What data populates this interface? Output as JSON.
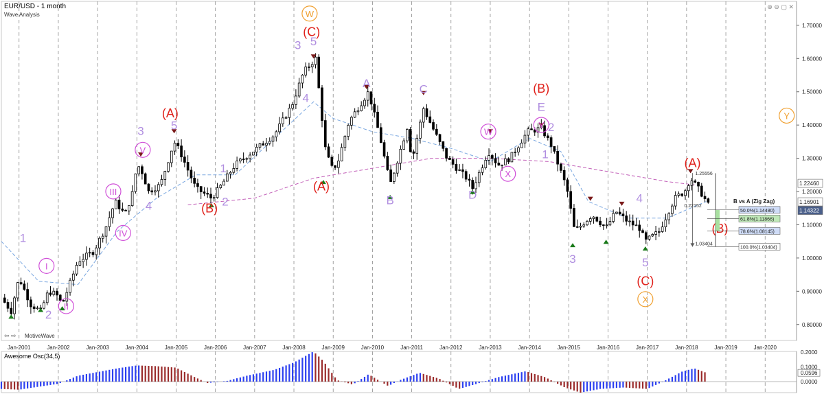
{
  "header": {
    "symbol": "EUR/USD - 1 month",
    "study": "Wave Analysis"
  },
  "watermark": "MotiveWave",
  "window_controls": "⊕ ⊖ ▢ ✕",
  "nav_arrows": "⇦ ⇨",
  "oscillator": {
    "title": "Awesome Osc(34,5)",
    "axis_labels": [
      "0.2000",
      "0.1000",
      "0.0596",
      "0.0000"
    ],
    "current_value": 0.0596
  },
  "chart_data": {
    "type": "candlestick",
    "title": "EUR/USD - 1 month",
    "subtitle": "Wave Analysis",
    "x_ticks": [
      "Jan-2001",
      "Jan-2002",
      "Jan-2003",
      "Jan-2004",
      "Jan-2005",
      "Jan-2006",
      "Jan-2007",
      "Jan-2008",
      "Jan-2009",
      "Jan-2010",
      "Jan-2011",
      "Jan-2012",
      "Jan-2013",
      "Jan-2014",
      "Jan-2015",
      "Jan-2016",
      "Jan-2017",
      "Jan-2018",
      "Jan-2019",
      "Jan-2020"
    ],
    "x_range": [
      2000.55,
      2020.8
    ],
    "y_ticks": [
      "0.80000",
      "0.90000",
      "1.00000",
      "1.10000",
      "1.20000",
      "1.30000",
      "1.40000",
      "1.50000",
      "1.60000",
      "1.70000"
    ],
    "ylim": [
      0.752,
      1.772
    ],
    "grid": "vertical dashed at yearly ticks",
    "price_path": [
      [
        2000.55,
        0.88
      ],
      [
        2000.8,
        0.84
      ],
      [
        2001.0,
        0.94
      ],
      [
        2001.3,
        0.86
      ],
      [
        2001.55,
        0.84
      ],
      [
        2001.75,
        0.9
      ],
      [
        2001.95,
        0.89
      ],
      [
        2002.1,
        0.86
      ],
      [
        2002.5,
        0.99
      ],
      [
        2002.9,
        1.02
      ],
      [
        2003.2,
        1.09
      ],
      [
        2003.45,
        1.17
      ],
      [
        2003.7,
        1.13
      ],
      [
        2003.9,
        1.2
      ],
      [
        2004.0,
        1.28
      ],
      [
        2004.1,
        1.27
      ],
      [
        2004.3,
        1.2
      ],
      [
        2004.6,
        1.22
      ],
      [
        2004.95,
        1.35
      ],
      [
        2005.1,
        1.32
      ],
      [
        2005.5,
        1.21
      ],
      [
        2005.9,
        1.18
      ],
      [
        2006.1,
        1.21
      ],
      [
        2006.5,
        1.28
      ],
      [
        2006.95,
        1.32
      ],
      [
        2007.5,
        1.37
      ],
      [
        2007.95,
        1.46
      ],
      [
        2008.25,
        1.56
      ],
      [
        2008.55,
        1.6
      ],
      [
        2008.8,
        1.33
      ],
      [
        2008.95,
        1.27
      ],
      [
        2009.1,
        1.28
      ],
      [
        2009.4,
        1.41
      ],
      [
        2009.9,
        1.5
      ],
      [
        2010.2,
        1.36
      ],
      [
        2010.45,
        1.22
      ],
      [
        2010.9,
        1.4
      ],
      [
        2011.0,
        1.29
      ],
      [
        2011.3,
        1.45
      ],
      [
        2011.9,
        1.3
      ],
      [
        2012.4,
        1.24
      ],
      [
        2012.55,
        1.21
      ],
      [
        2012.95,
        1.32
      ],
      [
        2013.2,
        1.28
      ],
      [
        2013.5,
        1.3
      ],
      [
        2013.95,
        1.38
      ],
      [
        2014.3,
        1.39
      ],
      [
        2014.55,
        1.34
      ],
      [
        2014.95,
        1.21
      ],
      [
        2015.15,
        1.08
      ],
      [
        2015.6,
        1.13
      ],
      [
        2015.95,
        1.09
      ],
      [
        2016.2,
        1.14
      ],
      [
        2016.5,
        1.11
      ],
      [
        2016.8,
        1.09
      ],
      [
        2016.95,
        1.05
      ],
      [
        2017.3,
        1.08
      ],
      [
        2017.7,
        1.18
      ],
      [
        2017.95,
        1.2
      ],
      [
        2018.1,
        1.24
      ],
      [
        2018.35,
        1.2
      ],
      [
        2018.55,
        1.16
      ]
    ],
    "y_axis_markers": [
      {
        "label": "1.22460",
        "value": 1.2246,
        "style": "plain"
      },
      {
        "label": "1.16901",
        "value": 1.16901,
        "style": "plain"
      },
      {
        "label": "1.14322",
        "value": 1.14322,
        "style": "current"
      }
    ],
    "moving_averages": [
      {
        "color": "#7aa7e0",
        "points": [
          [
            2000.55,
            1.05
          ],
          [
            2001.5,
            0.93
          ],
          [
            2002.5,
            0.92
          ],
          [
            2003.5,
            1.08
          ],
          [
            2004.5,
            1.18
          ],
          [
            2005.5,
            1.25
          ],
          [
            2006.5,
            1.25
          ],
          [
            2007.5,
            1.36
          ],
          [
            2008.5,
            1.47
          ],
          [
            2009.0,
            1.42
          ],
          [
            2010.0,
            1.38
          ],
          [
            2011.0,
            1.36
          ],
          [
            2012.0,
            1.33
          ],
          [
            2013.0,
            1.29
          ],
          [
            2014.0,
            1.36
          ],
          [
            2014.8,
            1.32
          ],
          [
            2015.5,
            1.17
          ],
          [
            2016.5,
            1.12
          ],
          [
            2017.5,
            1.12
          ],
          [
            2018.5,
            1.17
          ]
        ]
      },
      {
        "color": "#c25fb8",
        "points": [
          [
            2005.3,
            1.16
          ],
          [
            2007.0,
            1.18
          ],
          [
            2008.5,
            1.24
          ],
          [
            2010.0,
            1.27
          ],
          [
            2011.5,
            1.3
          ],
          [
            2013.0,
            1.3
          ],
          [
            2014.5,
            1.29
          ],
          [
            2016.0,
            1.26
          ],
          [
            2017.5,
            1.23
          ],
          [
            2018.2,
            1.22
          ]
        ]
      }
    ],
    "wave_labels": [
      {
        "text": "W",
        "year": 2008.4,
        "price": 1.725,
        "color": "#f0a030",
        "circled": true
      },
      {
        "text": "(C)",
        "year": 2008.45,
        "price": 1.668,
        "color": "#e0201a"
      },
      {
        "text": "3",
        "year": 2008.1,
        "price": 1.628,
        "color": "#b08ee0"
      },
      {
        "text": "5",
        "year": 2008.5,
        "price": 1.64,
        "color": "#b08ee0"
      },
      {
        "text": "4",
        "year": 2008.3,
        "price": 1.47,
        "color": "#b08ee0"
      },
      {
        "text": "(A)",
        "year": 2004.85,
        "price": 1.423,
        "color": "#e0201a"
      },
      {
        "text": "5",
        "year": 2004.95,
        "price": 1.387,
        "color": "#b08ee0"
      },
      {
        "text": "3",
        "year": 2004.1,
        "price": 1.37,
        "color": "#b08ee0"
      },
      {
        "text": "V",
        "year": 2004.15,
        "price": 1.315,
        "color": "#d050d8",
        "circled": true
      },
      {
        "text": "III",
        "year": 2003.4,
        "price": 1.19,
        "color": "#d050d8",
        "circled": true
      },
      {
        "text": "IV",
        "year": 2003.65,
        "price": 1.065,
        "color": "#d050d8",
        "circled": true
      },
      {
        "text": "4",
        "year": 2004.3,
        "price": 1.145,
        "color": "#b08ee0"
      },
      {
        "text": "1",
        "year": 2001.1,
        "price": 1.048,
        "color": "#b08ee0"
      },
      {
        "text": "I",
        "year": 2001.7,
        "price": 0.966,
        "color": "#d050d8",
        "circled": true
      },
      {
        "text": "2",
        "year": 2001.75,
        "price": 0.818,
        "color": "#b08ee0"
      },
      {
        "text": "II",
        "year": 2002.2,
        "price": 0.845,
        "color": "#d050d8",
        "circled": true
      },
      {
        "text": "1",
        "year": 2006.2,
        "price": 1.258,
        "color": "#b08ee0"
      },
      {
        "text": "2",
        "year": 2006.25,
        "price": 1.158,
        "color": "#b08ee0"
      },
      {
        "text": "(B)",
        "year": 2005.85,
        "price": 1.137,
        "color": "#e0201a"
      },
      {
        "text": "(A)",
        "year": 2008.7,
        "price": 1.203,
        "color": "#e0201a"
      },
      {
        "text": "A",
        "year": 2009.85,
        "price": 1.514,
        "color": "#b08ee0"
      },
      {
        "text": "B",
        "year": 2010.45,
        "price": 1.162,
        "color": "#b08ee0"
      },
      {
        "text": "C",
        "year": 2011.3,
        "price": 1.496,
        "color": "#b08ee0"
      },
      {
        "text": "D",
        "year": 2012.55,
        "price": 1.178,
        "color": "#b08ee0"
      },
      {
        "text": "W",
        "year": 2012.95,
        "price": 1.37,
        "color": "#d050d8",
        "circled": true
      },
      {
        "text": "X",
        "year": 2013.45,
        "price": 1.243,
        "color": "#d050d8",
        "circled": true
      },
      {
        "text": "Y",
        "year": 2014.3,
        "price": 1.39,
        "color": "#d050d8",
        "circled": true
      },
      {
        "text": "(B)",
        "year": 2014.3,
        "price": 1.497,
        "color": "#e0201a"
      },
      {
        "text": "E",
        "year": 2014.3,
        "price": 1.443,
        "color": "#b08ee0"
      },
      {
        "text": "2",
        "year": 2014.55,
        "price": 1.382,
        "color": "#b08ee0"
      },
      {
        "text": "1",
        "year": 2014.4,
        "price": 1.3,
        "color": "#b08ee0"
      },
      {
        "text": "3",
        "year": 2015.1,
        "price": 0.985,
        "color": "#b08ee0"
      },
      {
        "text": "4",
        "year": 2016.8,
        "price": 1.168,
        "color": "#b08ee0"
      },
      {
        "text": "5",
        "year": 2016.95,
        "price": 0.975,
        "color": "#b08ee0"
      },
      {
        "text": "(C)",
        "year": 2016.95,
        "price": 0.918,
        "color": "#e0201a"
      },
      {
        "text": "X",
        "year": 2016.95,
        "price": 0.866,
        "color": "#f0a030",
        "circled": true
      },
      {
        "text": "(A)",
        "year": 2018.15,
        "price": 1.273,
        "color": "#e0201a"
      },
      {
        "text": "(B)",
        "year": 2018.85,
        "price": 1.076,
        "color": "#e0201a"
      },
      {
        "text": "Y",
        "year": 2020.55,
        "price": 1.418,
        "color": "#f0a030",
        "circled": true
      }
    ],
    "pivot_markers": [
      {
        "year": 2000.8,
        "price": 0.83,
        "dir": "low"
      },
      {
        "year": 2001.55,
        "price": 0.85,
        "dir": "low"
      },
      {
        "year": 2002.1,
        "price": 0.855,
        "dir": "low"
      },
      {
        "year": 2004.95,
        "price": 1.375,
        "dir": "high"
      },
      {
        "year": 2004.1,
        "price": 1.305,
        "dir": "high"
      },
      {
        "year": 2005.9,
        "price": 1.165,
        "dir": "low"
      },
      {
        "year": 2008.5,
        "price": 1.6,
        "dir": "high"
      },
      {
        "year": 2008.75,
        "price": 1.235,
        "dir": "low"
      },
      {
        "year": 2009.85,
        "price": 1.508,
        "dir": "high"
      },
      {
        "year": 2010.45,
        "price": 1.19,
        "dir": "low"
      },
      {
        "year": 2011.3,
        "price": 1.49,
        "dir": "high"
      },
      {
        "year": 2012.55,
        "price": 1.205,
        "dir": "low"
      },
      {
        "year": 2013.0,
        "price": 1.375,
        "dir": "high"
      },
      {
        "year": 2014.3,
        "price": 1.393,
        "dir": "high"
      },
      {
        "year": 2015.1,
        "price": 1.045,
        "dir": "low"
      },
      {
        "year": 2015.55,
        "price": 1.172,
        "dir": "high"
      },
      {
        "year": 2015.95,
        "price": 1.055,
        "dir": "low"
      },
      {
        "year": 2016.35,
        "price": 1.157,
        "dir": "high"
      },
      {
        "year": 2016.95,
        "price": 1.035,
        "dir": "low"
      },
      {
        "year": 2018.1,
        "price": 1.255,
        "dir": "high"
      }
    ],
    "zigzag_measure": {
      "top_label": "1.25556",
      "top_price": 1.25556,
      "bottom_label": "1.03404",
      "bottom_price": 1.03404,
      "range_label": "0.22152",
      "year": 2018.15
    },
    "fib_retracement": {
      "title": "B vs A (Zig Zag)",
      "levels": [
        {
          "label": "50.0%(1.14480)",
          "price": 1.1448,
          "fill": "#cfdcf7"
        },
        {
          "label": "61.8%(1.11866)",
          "price": 1.11866,
          "fill": "#bfe8b8"
        },
        {
          "label": "78.6%(1.08145)",
          "price": 1.08145,
          "fill": "#cfdcf7"
        },
        {
          "label": "100.0%(1.03404)",
          "price": 1.03404,
          "fill": "#ffffff"
        }
      ]
    },
    "awesome_oscillator": {
      "ylim": [
        -0.075,
        0.205
      ],
      "points": [
        [
          2000.55,
          -0.05
        ],
        [
          2001.0,
          -0.055
        ],
        [
          2001.5,
          -0.035
        ],
        [
          2002.0,
          -0.015
        ],
        [
          2002.5,
          0.04
        ],
        [
          2003.0,
          0.065
        ],
        [
          2003.5,
          0.09
        ],
        [
          2004.0,
          0.11
        ],
        [
          2004.5,
          0.105
        ],
        [
          2005.0,
          0.095
        ],
        [
          2005.4,
          0.04
        ],
        [
          2005.8,
          -0.01
        ],
        [
          2006.3,
          0.005
        ],
        [
          2006.8,
          0.04
        ],
        [
          2007.5,
          0.08
        ],
        [
          2008.0,
          0.13
        ],
        [
          2008.5,
          0.205
        ],
        [
          2008.75,
          0.14
        ],
        [
          2009.1,
          0.01
        ],
        [
          2009.5,
          -0.02
        ],
        [
          2009.9,
          0.05
        ],
        [
          2010.4,
          -0.03
        ],
        [
          2010.7,
          0.01
        ],
        [
          2011.2,
          0.06
        ],
        [
          2011.7,
          0.02
        ],
        [
          2012.2,
          -0.05
        ],
        [
          2012.6,
          -0.02
        ],
        [
          2013.2,
          0.03
        ],
        [
          2013.9,
          0.07
        ],
        [
          2014.4,
          0.03
        ],
        [
          2014.9,
          -0.04
        ],
        [
          2015.3,
          -0.075
        ],
        [
          2015.8,
          -0.05
        ],
        [
          2016.4,
          -0.04
        ],
        [
          2017.0,
          -0.05
        ],
        [
          2017.4,
          0.0
        ],
        [
          2017.9,
          0.07
        ],
        [
          2018.2,
          0.09
        ],
        [
          2018.5,
          0.06
        ]
      ]
    }
  }
}
